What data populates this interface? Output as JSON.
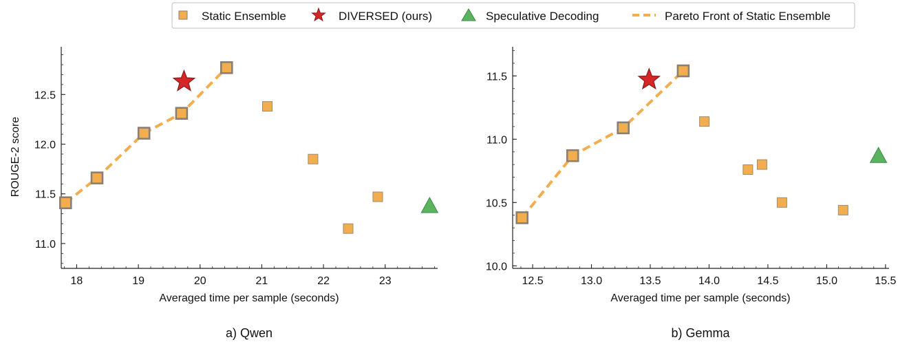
{
  "legend": {
    "entries": [
      {
        "label": "Static Ensemble",
        "marker": "square"
      },
      {
        "label": "DIVERSED (ours)",
        "marker": "star"
      },
      {
        "label": "Speculative Decoding",
        "marker": "triangle"
      },
      {
        "label": "Pareto Front of Static Ensemble",
        "marker": "dashed-line"
      }
    ],
    "placement": "top-center"
  },
  "colors": {
    "static": "#F2AE4E",
    "static_edge": "#8A7F72",
    "diversed": "#D62728",
    "speculative": "#5BB35F",
    "pareto": "#F2AE4E"
  },
  "chart_data": [
    {
      "type": "scatter",
      "caption": "a) Qwen",
      "xlabel": "Averaged time per sample (seconds)",
      "ylabel": "ROUGE-2 score",
      "xlim": [
        17.75,
        23.85
      ],
      "ylim": [
        10.75,
        12.98
      ],
      "xticks": [
        18,
        19,
        20,
        21,
        22,
        23
      ],
      "yticks": [
        11.0,
        11.5,
        12.0,
        12.5
      ],
      "xtick_labels": [
        "18",
        "19",
        "20",
        "21",
        "22",
        "23"
      ],
      "ytick_labels": [
        "11.0",
        "11.5",
        "12.0",
        "12.5"
      ],
      "grid": false,
      "series": [
        {
          "name": "Static Ensemble",
          "marker": "square",
          "x": [
            17.82,
            18.33,
            19.09,
            19.7,
            20.43,
            21.09,
            21.83,
            22.4,
            22.88
          ],
          "y": [
            11.41,
            11.66,
            12.11,
            12.31,
            12.77,
            12.38,
            11.85,
            11.15,
            11.47
          ],
          "pareto": [
            true,
            true,
            true,
            true,
            true,
            false,
            false,
            false,
            false
          ]
        },
        {
          "name": "DIVERSED (ours)",
          "marker": "star",
          "x": [
            19.74
          ],
          "y": [
            12.63
          ]
        },
        {
          "name": "Speculative Decoding",
          "marker": "triangle",
          "x": [
            23.72
          ],
          "y": [
            11.38
          ]
        },
        {
          "name": "Pareto Front of Static Ensemble",
          "marker": "dashed-line",
          "x": [
            17.82,
            18.33,
            19.09,
            19.7,
            20.43
          ],
          "y": [
            11.41,
            11.66,
            12.11,
            12.31,
            12.77
          ]
        }
      ]
    },
    {
      "type": "scatter",
      "caption": "b) Gemma",
      "xlabel": "Averaged time per sample (seconds)",
      "ylabel": "",
      "xlim": [
        12.33,
        15.53
      ],
      "ylim": [
        9.98,
        11.73
      ],
      "xticks": [
        12.5,
        13.0,
        13.5,
        14.0,
        14.5,
        15.0,
        15.5
      ],
      "yticks": [
        10.0,
        10.5,
        11.0,
        11.5
      ],
      "xtick_labels": [
        "12.5",
        "13.0",
        "13.5",
        "14.0",
        "14.5",
        "15.0",
        "15.5"
      ],
      "ytick_labels": [
        "10.0",
        "10.5",
        "11.0",
        "11.5"
      ],
      "grid": false,
      "series": [
        {
          "name": "Static Ensemble",
          "marker": "square",
          "x": [
            12.41,
            12.84,
            13.27,
            13.78,
            13.96,
            14.33,
            14.45,
            14.62,
            15.14
          ],
          "y": [
            10.38,
            10.87,
            11.09,
            11.54,
            11.14,
            10.76,
            10.8,
            10.5,
            10.44
          ],
          "pareto": [
            true,
            true,
            true,
            true,
            false,
            false,
            false,
            false,
            false
          ]
        },
        {
          "name": "DIVERSED (ours)",
          "marker": "star",
          "x": [
            13.49
          ],
          "y": [
            11.47
          ]
        },
        {
          "name": "Speculative Decoding",
          "marker": "triangle",
          "x": [
            15.44
          ],
          "y": [
            10.87
          ]
        },
        {
          "name": "Pareto Front of Static Ensemble",
          "marker": "dashed-line",
          "x": [
            12.41,
            12.84,
            13.27,
            13.78
          ],
          "y": [
            10.38,
            10.87,
            11.09,
            11.54
          ]
        }
      ]
    }
  ]
}
